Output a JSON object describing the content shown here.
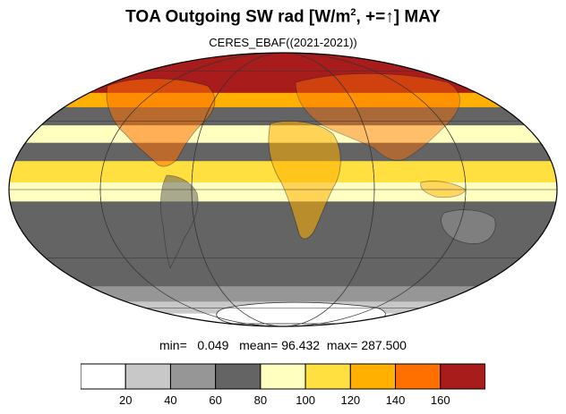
{
  "title": {
    "prefix": "TOA Outgoing SW rad [W/m",
    "superscript": "2",
    "suffix": ", +=↑] MAY"
  },
  "subtitle": "CERES_EBAF((2021-2021))",
  "stats": {
    "min_label": "min=",
    "min_value": "0.049",
    "mean_label": "mean=",
    "mean_value": "96.432",
    "max_label": "max=",
    "max_value": "287.500"
  },
  "colorbar": {
    "colors": [
      "#ffffff",
      "#c8c8c8",
      "#969696",
      "#646464",
      "#ffffc0",
      "#ffe040",
      "#ffb000",
      "#ff7000",
      "#a81c1c"
    ],
    "ticks": [
      "20",
      "40",
      "60",
      "80",
      "100",
      "120",
      "140",
      "160"
    ]
  },
  "map_bands": [
    {
      "lat_from": 90,
      "lat_to": 45,
      "level": 9
    },
    {
      "lat_from": 45,
      "lat_to": 37,
      "level": 7
    },
    {
      "lat_from": 37,
      "lat_to": 28,
      "level": 4
    },
    {
      "lat_from": 28,
      "lat_to": 20,
      "level": 5
    },
    {
      "lat_from": 20,
      "lat_to": 12,
      "level": 4
    },
    {
      "lat_from": 12,
      "lat_to": 3,
      "level": 6
    },
    {
      "lat_from": 3,
      "lat_to": -5,
      "level": 5
    },
    {
      "lat_from": -5,
      "lat_to": -20,
      "level": 4
    },
    {
      "lat_from": -20,
      "lat_to": -45,
      "level": 4
    },
    {
      "lat_from": -45,
      "lat_to": -55,
      "level": 3
    },
    {
      "lat_from": -55,
      "lat_to": -65,
      "level": 2
    },
    {
      "lat_from": -65,
      "lat_to": -90,
      "level": 1
    }
  ]
}
